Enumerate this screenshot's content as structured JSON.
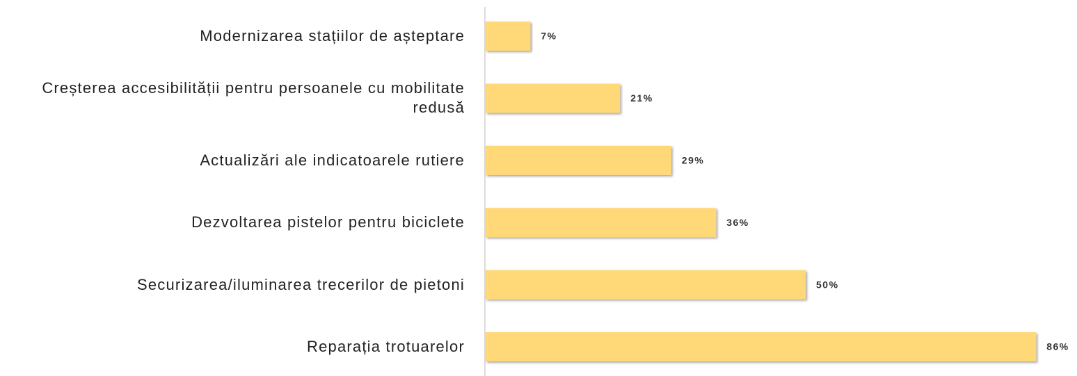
{
  "chart_data": {
    "type": "barh",
    "categories": [
      "Modernizarea stațiilor de așteptare",
      "Creșterea accesibilității pentru persoanele cu mobilitate redusă",
      "Actualizări ale indicatoarele rutiere",
      "Dezvoltarea pistelor pentru biciclete",
      "Securizarea/iluminarea trecerilor de pietoni",
      "Reparația trotuarelor"
    ],
    "values": [
      7,
      21,
      29,
      36,
      50,
      86
    ],
    "value_labels": [
      "7%",
      "21%",
      "29%",
      "36%",
      "50%",
      "86%"
    ],
    "color": "#ffd878"
  }
}
